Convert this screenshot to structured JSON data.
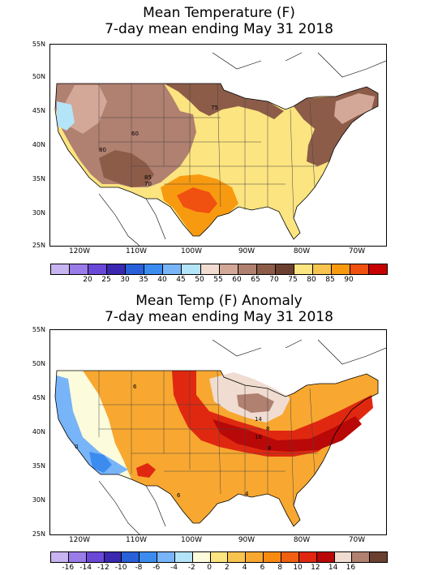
{
  "top_map": {
    "title_line1": "Mean Temperature (F)",
    "title_line2": "7-day mean ending May 31 2018",
    "lat_labels": [
      "55N",
      "50N",
      "45N",
      "40N",
      "35N",
      "30N",
      "25N"
    ],
    "lon_labels": [
      "120W",
      "110W",
      "100W",
      "90W",
      "80W",
      "70W"
    ],
    "colorbar": {
      "colors": [
        "#c8b4f0",
        "#9a7ce8",
        "#6a48d8",
        "#3a28b0",
        "#2860d8",
        "#3c8cf0",
        "#78b4f8",
        "#b4e4f8",
        "#f0dcd0",
        "#d4a898",
        "#b08070",
        "#8c5c48",
        "#6c4030",
        "#fce480",
        "#f8c450",
        "#f89a10",
        "#f05010",
        "#c80000"
      ],
      "labels": [
        "20",
        "25",
        "30",
        "35",
        "40",
        "45",
        "50",
        "55",
        "60",
        "65",
        "70",
        "75",
        "80",
        "85",
        "90"
      ]
    },
    "contour_labels": [
      "75",
      "60",
      "80",
      "85",
      "70"
    ]
  },
  "bottom_map": {
    "title_line1": "Mean Temp (F) Anomaly",
    "title_line2": "7-day mean ending May 31 2018",
    "lat_labels": [
      "55N",
      "50N",
      "45N",
      "40N",
      "35N",
      "30N",
      "25N"
    ],
    "lon_labels": [
      "120W",
      "110W",
      "100W",
      "90W",
      "80W",
      "70W"
    ],
    "colorbar": {
      "colors": [
        "#c8b4f0",
        "#9a7ce8",
        "#6a48d8",
        "#3a28b0",
        "#2860d8",
        "#3c8cf0",
        "#78b4f8",
        "#b4e4f8",
        "#fcfcdc",
        "#fce480",
        "#f8c450",
        "#f8a830",
        "#f88a10",
        "#f06010",
        "#e02810",
        "#b80808",
        "#f0dcd0",
        "#b08070",
        "#6c4030"
      ],
      "labels": [
        "-16",
        "-14",
        "-12",
        "-10",
        "-8",
        "-6",
        "-4",
        "-2",
        "0",
        "2",
        "4",
        "6",
        "8",
        "10",
        "12",
        "14",
        "16"
      ]
    },
    "contour_labels": [
      "6",
      "8",
      "10",
      "14",
      "8",
      "6",
      "4",
      "0"
    ]
  }
}
